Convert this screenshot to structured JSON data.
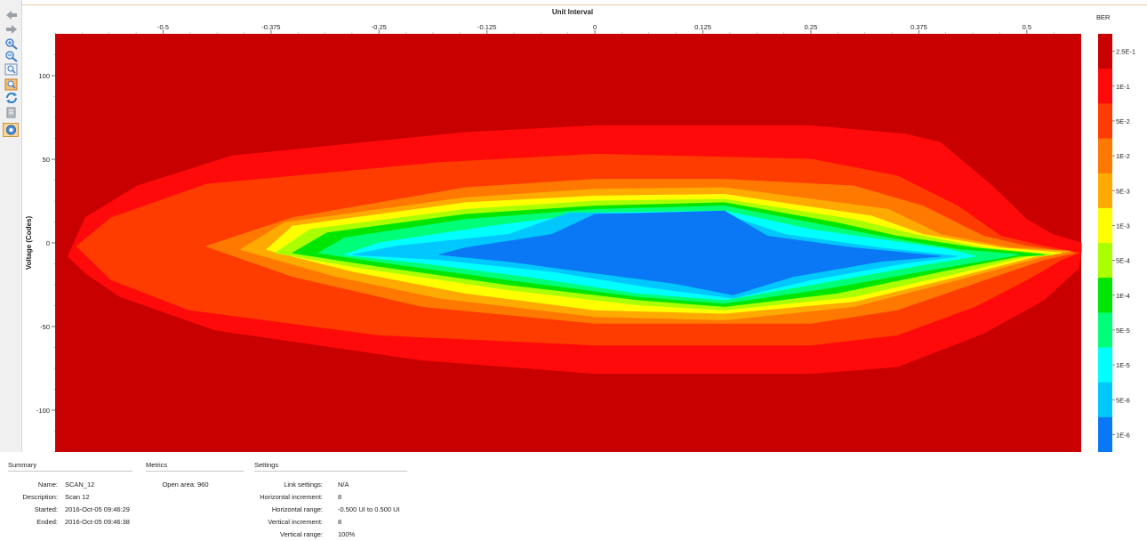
{
  "toolbar": {
    "buttons": [
      {
        "icon": "back-arrow-icon"
      },
      {
        "icon": "forward-arrow-icon"
      },
      {
        "icon": "zoom-in-icon"
      },
      {
        "icon": "zoom-out-icon"
      },
      {
        "icon": "zoom-fit-icon"
      },
      {
        "icon": "zoom-box-icon"
      },
      {
        "icon": "refresh-icon"
      },
      {
        "icon": "export-icon"
      },
      {
        "icon": "settings-icon"
      }
    ]
  },
  "chart_data": {
    "type": "heatmap",
    "title": "",
    "xlabel": "Unit Interval",
    "ylabel": "Voltage (Codes)",
    "xlim": [
      -0.625,
      0.563
    ],
    "ylim": [
      -125,
      125
    ],
    "x_ticks": [
      "-0.5",
      "-0.375",
      "-0.25",
      "-0.125",
      "0",
      "0.125",
      "0.25",
      "0.375",
      "0.5"
    ],
    "x_tick_values": [
      -0.5,
      -0.375,
      -0.25,
      -0.125,
      0,
      0.125,
      0.25,
      0.375,
      0.5
    ],
    "y_ticks": [
      "100",
      "50",
      "0",
      "-50",
      "-100"
    ],
    "y_tick_values": [
      100,
      50,
      0,
      -50,
      -100
    ],
    "legend_title": "BER",
    "legend_position": "right",
    "legend": [
      {
        "label": "2.5E-1",
        "color": "#c80000"
      },
      {
        "label": "1E-1",
        "color": "#ff0a0a"
      },
      {
        "label": "5E-2",
        "color": "#ff3c00"
      },
      {
        "label": "1E-2",
        "color": "#ff7800"
      },
      {
        "label": "5E-3",
        "color": "#ffaa00"
      },
      {
        "label": "1E-3",
        "color": "#ffff00"
      },
      {
        "label": "5E-4",
        "color": "#aaff00"
      },
      {
        "label": "1E-4",
        "color": "#00e600"
      },
      {
        "label": "5E-5",
        "color": "#00ff78"
      },
      {
        "label": "1E-5",
        "color": "#00ffff"
      },
      {
        "label": "5E-6",
        "color": "#00c8ff"
      },
      {
        "label": "1E-6",
        "color": "#0a78f5"
      }
    ],
    "contours": [
      {
        "level": "1E-1",
        "color": "#ff0a0a",
        "points": [
          [
            -0.61,
            -8
          ],
          [
            -0.59,
            -18
          ],
          [
            -0.55,
            -32
          ],
          [
            -0.44,
            -52
          ],
          [
            -0.2,
            -70
          ],
          [
            0.0,
            -78
          ],
          [
            0.25,
            -78
          ],
          [
            0.35,
            -74
          ],
          [
            0.45,
            -54
          ],
          [
            0.52,
            -34
          ],
          [
            0.56,
            -15
          ],
          [
            0.563,
            -5
          ],
          [
            0.563,
            0
          ],
          [
            0.53,
            5
          ],
          [
            0.5,
            14
          ],
          [
            0.46,
            34
          ],
          [
            0.4,
            60
          ],
          [
            0.36,
            65
          ],
          [
            0.25,
            70
          ],
          [
            0.0,
            70
          ],
          [
            -0.15,
            66
          ],
          [
            -0.42,
            52
          ],
          [
            -0.53,
            34
          ],
          [
            -0.59,
            15
          ]
        ]
      },
      {
        "level": "5E-2",
        "color": "#ff3c00",
        "points": [
          [
            -0.6,
            -2
          ],
          [
            -0.56,
            -22
          ],
          [
            -0.47,
            -40
          ],
          [
            -0.25,
            -55
          ],
          [
            0.0,
            -61
          ],
          [
            0.25,
            -61
          ],
          [
            0.35,
            -55
          ],
          [
            0.44,
            -38
          ],
          [
            0.5,
            -22
          ],
          [
            0.54,
            -10
          ],
          [
            0.56,
            -6
          ],
          [
            0.52,
            -2
          ],
          [
            0.47,
            4
          ],
          [
            0.42,
            22
          ],
          [
            0.35,
            40
          ],
          [
            0.25,
            50
          ],
          [
            0.0,
            53
          ],
          [
            -0.18,
            48
          ],
          [
            -0.45,
            35
          ],
          [
            -0.56,
            15
          ]
        ]
      },
      {
        "level": "1E-2",
        "color": "#ff7800",
        "points": [
          [
            -0.45,
            -2
          ],
          [
            -0.35,
            -20
          ],
          [
            -0.2,
            -38
          ],
          [
            0.0,
            -48
          ],
          [
            0.25,
            -48
          ],
          [
            0.35,
            -40
          ],
          [
            0.44,
            -24
          ],
          [
            0.52,
            -10
          ],
          [
            0.555,
            -6
          ],
          [
            0.5,
            -2
          ],
          [
            0.45,
            4
          ],
          [
            0.38,
            22
          ],
          [
            0.3,
            34
          ],
          [
            0.15,
            38
          ],
          [
            0.0,
            38
          ],
          [
            -0.15,
            33
          ],
          [
            -0.35,
            15
          ]
        ]
      },
      {
        "level": "5E-3",
        "color": "#ffaa00",
        "points": [
          [
            -0.41,
            -4
          ],
          [
            -0.3,
            -20
          ],
          [
            -0.18,
            -33
          ],
          [
            0.0,
            -44
          ],
          [
            0.15,
            -46
          ],
          [
            0.3,
            -38
          ],
          [
            0.42,
            -22
          ],
          [
            0.52,
            -8
          ],
          [
            0.55,
            -5
          ],
          [
            0.48,
            -3
          ],
          [
            0.4,
            5
          ],
          [
            0.34,
            20
          ],
          [
            0.15,
            33
          ],
          [
            0.0,
            32
          ],
          [
            -0.15,
            27
          ],
          [
            -0.36,
            12
          ]
        ]
      },
      {
        "level": "1E-3",
        "color": "#ffff00",
        "points": [
          [
            -0.38,
            -4
          ],
          [
            -0.28,
            -17
          ],
          [
            -0.15,
            -30
          ],
          [
            0.0,
            -40
          ],
          [
            0.15,
            -42
          ],
          [
            0.3,
            -35
          ],
          [
            0.42,
            -20
          ],
          [
            0.51,
            -8
          ],
          [
            0.54,
            -6
          ],
          [
            0.47,
            -3
          ],
          [
            0.38,
            5
          ],
          [
            0.32,
            16
          ],
          [
            0.15,
            29
          ],
          [
            0.0,
            28
          ],
          [
            -0.15,
            24
          ],
          [
            -0.35,
            10
          ]
        ]
      },
      {
        "level": "5E-4",
        "color": "#aaff00",
        "points": [
          [
            -0.37,
            -6
          ],
          [
            -0.27,
            -15
          ],
          [
            -0.1,
            -28
          ],
          [
            0.05,
            -37
          ],
          [
            0.15,
            -40
          ],
          [
            0.3,
            -32
          ],
          [
            0.42,
            -18
          ],
          [
            0.5,
            -8
          ],
          [
            0.53,
            -7
          ],
          [
            0.45,
            -3
          ],
          [
            0.37,
            5
          ],
          [
            0.3,
            14
          ],
          [
            0.15,
            26
          ],
          [
            0.0,
            25
          ],
          [
            -0.15,
            20
          ],
          [
            -0.33,
            8
          ]
        ]
      },
      {
        "level": "1E-4",
        "color": "#00e600",
        "points": [
          [
            -0.35,
            -6
          ],
          [
            -0.25,
            -14
          ],
          [
            -0.1,
            -25
          ],
          [
            0.05,
            -34
          ],
          [
            0.15,
            -38
          ],
          [
            0.28,
            -30
          ],
          [
            0.41,
            -16
          ],
          [
            0.49,
            -8
          ],
          [
            0.52,
            -7
          ],
          [
            0.44,
            -3
          ],
          [
            0.35,
            4
          ],
          [
            0.28,
            12
          ],
          [
            0.15,
            24
          ],
          [
            0.0,
            22
          ],
          [
            -0.15,
            17
          ],
          [
            -0.31,
            6
          ]
        ]
      },
      {
        "level": "5E-5",
        "color": "#00ff78",
        "points": [
          [
            -0.32,
            -6
          ],
          [
            -0.24,
            -12
          ],
          [
            -0.1,
            -22
          ],
          [
            0.05,
            -32
          ],
          [
            0.15,
            -36
          ],
          [
            0.27,
            -27
          ],
          [
            0.4,
            -15
          ],
          [
            0.48,
            -8
          ],
          [
            0.49,
            -7
          ],
          [
            0.42,
            -4
          ],
          [
            0.34,
            3
          ],
          [
            0.27,
            10
          ],
          [
            0.15,
            22
          ],
          [
            0.0,
            20
          ],
          [
            -0.15,
            14
          ],
          [
            -0.29,
            3
          ]
        ]
      },
      {
        "level": "1E-5",
        "color": "#00ffff",
        "points": [
          [
            -0.29,
            -7
          ],
          [
            -0.2,
            -12
          ],
          [
            -0.08,
            -20
          ],
          [
            0.05,
            -30
          ],
          [
            0.15,
            -34
          ],
          [
            0.26,
            -24
          ],
          [
            0.38,
            -13
          ],
          [
            0.44,
            -8
          ],
          [
            0.41,
            -4
          ],
          [
            0.33,
            2
          ],
          [
            0.25,
            8
          ],
          [
            0.15,
            19
          ],
          [
            0.0,
            18
          ],
          [
            -0.12,
            10
          ],
          [
            -0.25,
            0
          ]
        ]
      },
      {
        "level": "5E-6",
        "color": "#00c8ff",
        "points": [
          [
            -0.28,
            -7
          ],
          [
            -0.18,
            -10
          ],
          [
            -0.05,
            -17
          ],
          [
            0.07,
            -27
          ],
          [
            0.16,
            -33
          ],
          [
            0.25,
            -22
          ],
          [
            0.36,
            -12
          ],
          [
            0.42,
            -8
          ],
          [
            0.33,
            -3
          ],
          [
            0.22,
            5
          ],
          [
            0.15,
            17
          ],
          [
            -0.03,
            18
          ],
          [
            -0.1,
            5
          ],
          [
            -0.23,
            -2
          ]
        ]
      },
      {
        "level": "1E-6",
        "color": "#0a78f5",
        "points": [
          [
            -0.18,
            -7
          ],
          [
            -0.1,
            -11
          ],
          [
            0.0,
            -18
          ],
          [
            0.09,
            -24
          ],
          [
            0.16,
            -31
          ],
          [
            0.23,
            -20
          ],
          [
            0.33,
            -11
          ],
          [
            0.4,
            -8
          ],
          [
            0.3,
            -3
          ],
          [
            0.2,
            4
          ],
          [
            0.15,
            19
          ],
          [
            0.0,
            17
          ],
          [
            -0.05,
            5
          ],
          [
            -0.15,
            -3
          ]
        ]
      }
    ]
  },
  "summary": {
    "title": "Summary",
    "rows": [
      {
        "key": "Name:",
        "value": "SCAN_12"
      },
      {
        "key": "Description:",
        "value": "Scan 12"
      },
      {
        "key": "Started:",
        "value": "2016-Oct-05 09:46:29"
      },
      {
        "key": "Ended:",
        "value": "2016-Oct-05 09:46:38"
      }
    ]
  },
  "metrics": {
    "title": "Metrics",
    "rows": [
      {
        "key": "Open area:",
        "value": "960"
      }
    ]
  },
  "settings": {
    "title": "Settings",
    "rows": [
      {
        "key": "Link settings:",
        "value": "N/A"
      },
      {
        "key": "Horizontal increment:",
        "value": "8"
      },
      {
        "key": "Horizontal range:",
        "value": "-0.500 UI to 0.500 UI"
      },
      {
        "key": "Vertical increment:",
        "value": "8"
      },
      {
        "key": "Vertical range:",
        "value": "100%"
      }
    ]
  }
}
